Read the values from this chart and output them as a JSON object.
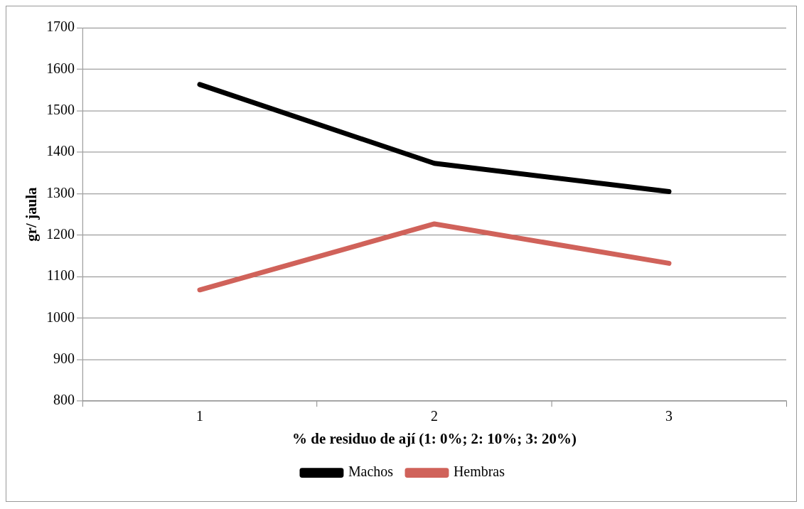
{
  "chart_data": {
    "type": "line",
    "xlabel": "% de residuo de ají (1: 0%; 2: 10%; 3: 20%)",
    "ylabel": "gr/ jaula",
    "categories": [
      "1",
      "2",
      "3"
    ],
    "series": [
      {
        "name": "Machos",
        "color": "#000000",
        "values": [
          1563,
          1373,
          1305
        ]
      },
      {
        "name": "Hembras",
        "color": "#d0625a",
        "values": [
          1068,
          1227,
          1132
        ]
      }
    ],
    "ylim": [
      800,
      1700
    ],
    "yticks": [
      800,
      900,
      1000,
      1100,
      1200,
      1300,
      1400,
      1500,
      1600,
      1700
    ],
    "grid": "y",
    "legend": "bottom",
    "marker": "none",
    "line_style": "solid"
  }
}
